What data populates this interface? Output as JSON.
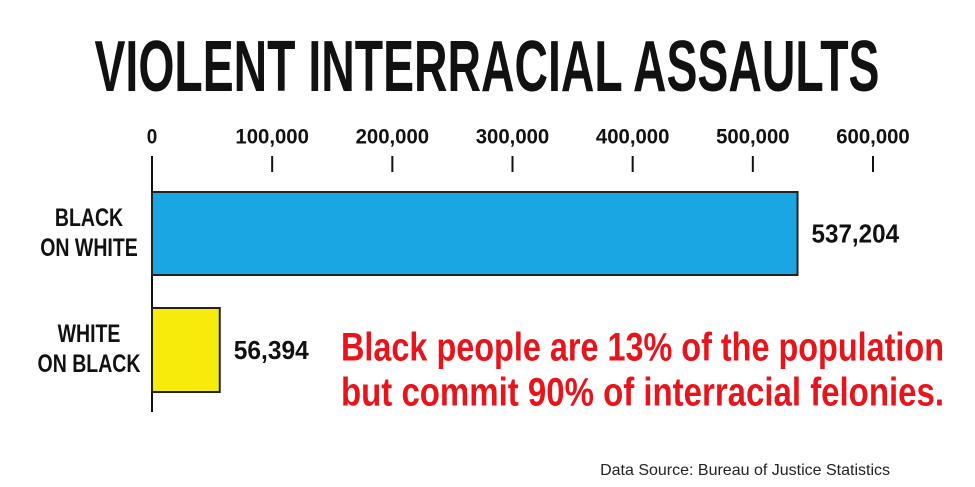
{
  "chart_data": {
    "type": "barh",
    "title": "VIOLENT INTERRACIAL ASSAULTS",
    "categories": [
      "BLACK\nON WHITE",
      "WHITE\nON BLACK"
    ],
    "values": [
      537204,
      56394
    ],
    "value_labels": [
      "537,204",
      "56,394"
    ],
    "colors": [
      "#1aa5e3",
      "#f7eb0c"
    ],
    "xlim": [
      0,
      600000
    ],
    "xticks": [
      0,
      {
        "value": 100000,
        "label": "100,000"
      },
      {
        "value": 200000,
        "label": "200,000"
      },
      {
        "value": 300000,
        "label": "300,000"
      },
      {
        "value": 400000,
        "label": "400,000"
      },
      {
        "value": 500000,
        "label": "500,000"
      },
      {
        "value": 600000,
        "label": "600,000"
      }
    ],
    "annotations": [
      "Black people are 13% of the population",
      "but commit 90% of interracial felonies."
    ],
    "source": "Data Source: Bureau of Justice Statistics"
  }
}
